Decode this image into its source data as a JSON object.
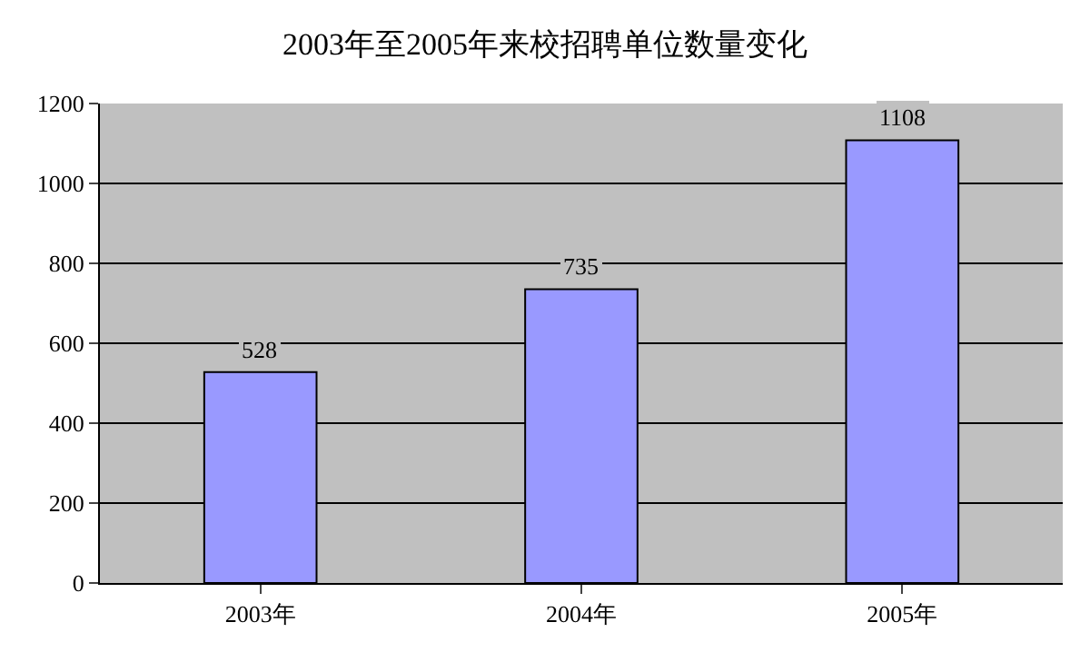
{
  "chart_data": {
    "type": "bar",
    "title": "2003年至2005年来校招聘单位数量变化",
    "categories": [
      "2003年",
      "2004年",
      "2005年"
    ],
    "values": [
      528,
      735,
      1108
    ],
    "color": "#9999ff",
    "ylim": [
      0,
      1200
    ],
    "yticks": [
      0,
      200,
      400,
      600,
      800,
      1000,
      1200
    ],
    "grid": "y",
    "data_labels": true
  }
}
